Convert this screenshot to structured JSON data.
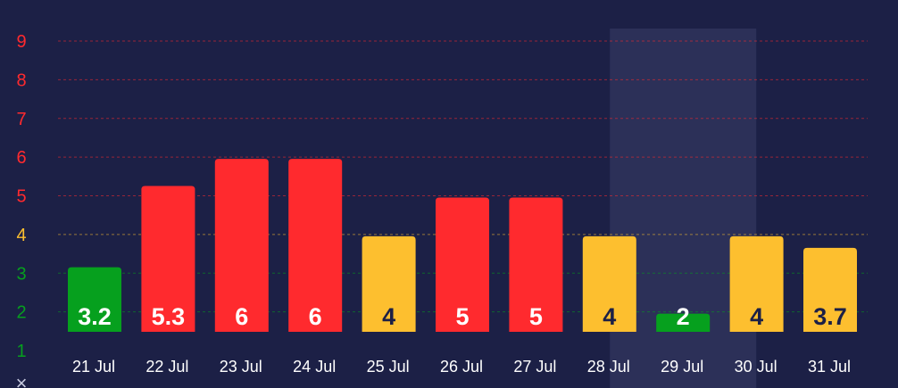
{
  "chart_data": {
    "type": "bar",
    "categories": [
      "21 Jul",
      "22 Jul",
      "23 Jul",
      "24 Jul",
      "25 Jul",
      "26 Jul",
      "27 Jul",
      "28 Jul",
      "29 Jul",
      "30 Jul",
      "31 Jul"
    ],
    "series": [
      {
        "values": [
          3.2,
          5.3,
          6,
          6,
          4,
          5,
          5,
          4,
          2,
          4,
          3.7
        ],
        "labels": [
          "3.2",
          "5.3",
          "6",
          "6",
          "4",
          "5",
          "5",
          "4",
          "2",
          "4",
          "3.7"
        ]
      }
    ],
    "bar_colors": [
      "#06a01e",
      "#ff2a2e",
      "#ff2a2e",
      "#ff2a2e",
      "#fdbf2f",
      "#ff2a2e",
      "#ff2a2e",
      "#fdbf2f",
      "#06a01e",
      "#fdbf2f",
      "#fdbf2f"
    ],
    "label_colors": [
      "#ffffff",
      "#ffffff",
      "#ffffff",
      "#ffffff",
      "#1c2046",
      "#ffffff",
      "#ffffff",
      "#1c2046",
      "#ffffff",
      "#1c2046",
      "#1c2046"
    ],
    "y_ticks": [
      "1",
      "2",
      "3",
      "4",
      "5",
      "6",
      "7",
      "8",
      "9"
    ],
    "y_tick_colors": [
      "#06a01e",
      "#06a01e",
      "#06a01e",
      "#fdbf2f",
      "#ff2a2e",
      "#ff2a2e",
      "#ff2a2e",
      "#ff2a2e",
      "#ff2a2e"
    ],
    "ylim": [
      1,
      9
    ],
    "highlighted_category": "29 Jul",
    "bottom_axis_symbol": "×",
    "grid": true,
    "title": "",
    "xlabel": "",
    "ylabel": ""
  }
}
